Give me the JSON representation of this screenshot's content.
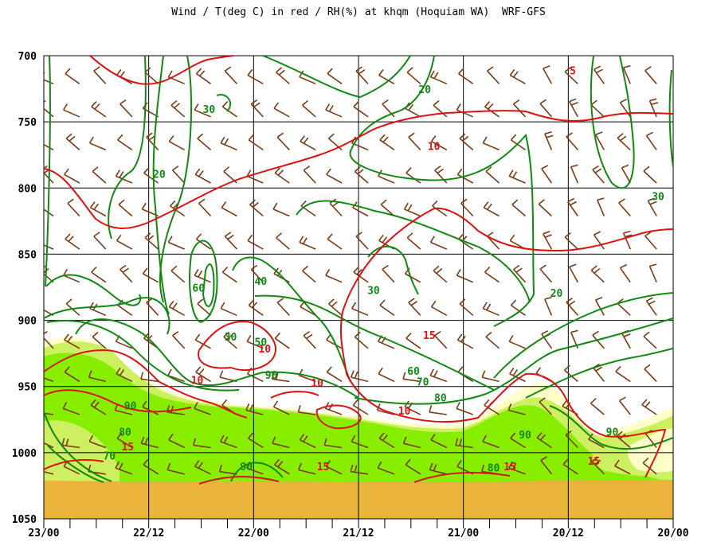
{
  "chart_data": {
    "type": "time-height cross-section (wind barbs, temperature and RH contours)",
    "title": "Wind / T(deg C) in red / RH(%) at khqm (Hoquiam WA)  WRF-GFS",
    "y_axis": {
      "quantity": "pressure (hPa)",
      "ylim": [
        700,
        1050
      ],
      "ticks": [
        700,
        750,
        800,
        850,
        900,
        950,
        1000,
        1050
      ],
      "tick_labels": [
        "700",
        "750",
        "800",
        "850",
        "900",
        "950",
        "1000",
        "1050"
      ]
    },
    "x_axis": {
      "quantity": "forecast time (day/hour UTC), reversed",
      "major_ticks": [
        "23/00",
        "22/12",
        "22/00",
        "21/12",
        "21/00",
        "20/12",
        "20/00"
      ],
      "minor_ticks_between_labels": 3
    },
    "colors": {
      "temperature": "#dd1111",
      "rh": "#118811",
      "barb": "#7a3b16",
      "rh70": "#ffffc8",
      "rh80": "#ccf060",
      "rh90": "#88ee00",
      "ground": "#eab43c",
      "grid": "#000000"
    },
    "temperature_contours_degC": [
      5,
      10,
      15
    ],
    "rh_contours_percent": [
      20,
      30,
      40,
      50,
      60,
      70,
      80,
      90
    ],
    "contour_labels": [
      {
        "text": "5",
        "field": "temperature",
        "time_h": -15.3,
        "p": 713
      },
      {
        "text": "10",
        "field": "temperature",
        "time_h": -36.5,
        "p": 770
      },
      {
        "text": "10",
        "field": "temperature",
        "time_h": -62.3,
        "p": 923
      },
      {
        "text": "10",
        "field": "temperature",
        "time_h": -72.6,
        "p": 947
      },
      {
        "text": "10",
        "field": "temperature",
        "time_h": -54.3,
        "p": 949
      },
      {
        "text": "10",
        "field": "temperature",
        "time_h": -41.0,
        "p": 970
      },
      {
        "text": "15",
        "field": "temperature",
        "time_h": -37.2,
        "p": 913
      },
      {
        "text": "15",
        "field": "temperature",
        "time_h": -83.2,
        "p": 997
      },
      {
        "text": "15",
        "field": "temperature",
        "time_h": -53.4,
        "p": 1012
      },
      {
        "text": "15",
        "field": "temperature",
        "time_h": -24.9,
        "p": 1012
      },
      {
        "text": "15",
        "field": "temperature",
        "time_h": -12.1,
        "p": 1008
      },
      {
        "text": "20",
        "field": "rh",
        "time_h": -37.9,
        "p": 727
      },
      {
        "text": "30",
        "field": "rh",
        "time_h": -70.8,
        "p": 742
      },
      {
        "text": "20",
        "field": "rh",
        "time_h": -78.4,
        "p": 791
      },
      {
        "text": "30",
        "field": "rh",
        "time_h": -2.3,
        "p": 808
      },
      {
        "text": "60",
        "field": "rh",
        "time_h": -72.4,
        "p": 877
      },
      {
        "text": "40",
        "field": "rh",
        "time_h": -62.9,
        "p": 872
      },
      {
        "text": "30",
        "field": "rh",
        "time_h": -45.7,
        "p": 879
      },
      {
        "text": "20",
        "field": "rh",
        "time_h": -17.8,
        "p": 881
      },
      {
        "text": "30",
        "field": "rh",
        "time_h": -67.5,
        "p": 914
      },
      {
        "text": "50",
        "field": "rh",
        "time_h": -62.9,
        "p": 918
      },
      {
        "text": "60",
        "field": "rh",
        "time_h": -39.6,
        "p": 940
      },
      {
        "text": "90",
        "field": "rh",
        "time_h": -61.3,
        "p": 943
      },
      {
        "text": "70",
        "field": "rh",
        "time_h": -38.2,
        "p": 948
      },
      {
        "text": "80",
        "field": "rh",
        "time_h": -35.5,
        "p": 960
      },
      {
        "text": "90",
        "field": "rh",
        "time_h": -82.8,
        "p": 966
      },
      {
        "text": "80",
        "field": "rh",
        "time_h": -83.6,
        "p": 986
      },
      {
        "text": "90",
        "field": "rh",
        "time_h": -9.3,
        "p": 986
      },
      {
        "text": "90",
        "field": "rh",
        "time_h": -22.6,
        "p": 988
      },
      {
        "text": "70",
        "field": "rh",
        "time_h": -86.0,
        "p": 1004
      },
      {
        "text": "90",
        "field": "rh",
        "time_h": -65.1,
        "p": 1012
      },
      {
        "text": "80",
        "field": "rh",
        "time_h": -27.4,
        "p": 1013
      }
    ]
  }
}
